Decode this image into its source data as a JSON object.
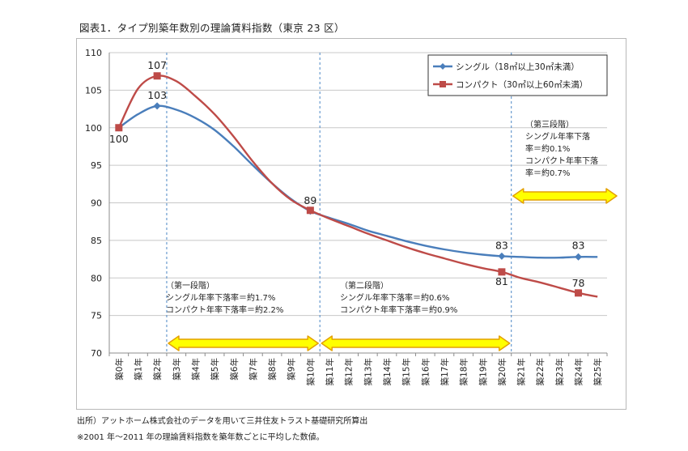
{
  "figure_title": "図表1．タイプ別築年数別の理論賃料指数（東京 23 区）",
  "notes": [
    "出所）アットホーム株式会社のデータを用いて三井住友トラスト基礎研究所算出",
    "※2001 年～2011 年の理論賃料指数を築年数ごとに平均した数値。"
  ],
  "colors": {
    "single": "#4a7ebb",
    "compact": "#be4b48",
    "band_fill": "#ffff00",
    "band_stroke": "#e4a000",
    "divider": "#4a86c5",
    "grid": "#c8c8c8"
  },
  "chart_data": {
    "type": "line",
    "title": "",
    "xlabel": "",
    "ylabel": "",
    "ylim": [
      70,
      110
    ],
    "yticks": [
      70,
      75,
      80,
      85,
      90,
      95,
      100,
      105,
      110
    ],
    "grid": true,
    "legend_position": "top-right",
    "categories": [
      "築0年",
      "築1年",
      "築2年",
      "築3年",
      "築4年",
      "築5年",
      "築6年",
      "築7年",
      "築8年",
      "築9年",
      "築10年",
      "築11年",
      "築12年",
      "築13年",
      "築14年",
      "築15年",
      "築16年",
      "築17年",
      "築18年",
      "築19年",
      "築20年",
      "築21年",
      "築22年",
      "築23年",
      "築24年",
      "築25年"
    ],
    "series": [
      {
        "name": "シングル（18㎡以上30㎡未満）",
        "marker": "diamond",
        "marked_x": [
          0,
          2,
          10,
          20,
          24
        ],
        "values": [
          100,
          101.8,
          102.9,
          102.4,
          101.3,
          99.7,
          97.5,
          95.0,
          92.6,
          90.5,
          88.9,
          88.0,
          87.2,
          86.3,
          85.6,
          84.9,
          84.3,
          83.8,
          83.4,
          83.1,
          82.9,
          82.8,
          82.7,
          82.7,
          82.8,
          82.8
        ]
      },
      {
        "name": "コンパクト（30㎡以上60㎡未満）",
        "marker": "square",
        "marked_x": [
          0,
          2,
          10,
          20,
          24
        ],
        "values": [
          100,
          105.2,
          106.9,
          106.2,
          104.2,
          101.8,
          98.8,
          95.5,
          92.6,
          90.4,
          89.0,
          87.9,
          86.9,
          85.9,
          85.0,
          84.1,
          83.3,
          82.6,
          81.9,
          81.3,
          80.8,
          80.0,
          79.4,
          78.7,
          78.0,
          77.5
        ]
      }
    ],
    "data_labels": [
      {
        "x": 0,
        "y": 100,
        "text": "100",
        "position": "below"
      },
      {
        "x": 2,
        "y": 107,
        "text": "107",
        "position": "above"
      },
      {
        "x": 2,
        "y": 103,
        "text": "103",
        "position": "above"
      },
      {
        "x": 10,
        "y": 89,
        "text": "89",
        "position": "above"
      },
      {
        "x": 20,
        "y": 83,
        "text": "83",
        "position": "above"
      },
      {
        "x": 20,
        "y": 81,
        "text": "81",
        "position": "below"
      },
      {
        "x": 24,
        "y": 83,
        "text": "83",
        "position": "above"
      },
      {
        "x": 24,
        "y": 78,
        "text": "78",
        "position": "above"
      }
    ],
    "phase_dividers_x": [
      2.5,
      10.5,
      20.5
    ],
    "phases": [
      {
        "from": 2.5,
        "to": 10.5,
        "lines": [
          "（第一段階）",
          "シングル年率下落率＝約1.7%",
          "コンパクト年率下落率＝約2.2%"
        ]
      },
      {
        "from": 10.5,
        "to": 20.5,
        "lines": [
          "（第二段階）",
          "シングル年率下落率＝約0.6%",
          "コンパクト年率下落率＝約0.9%"
        ]
      },
      {
        "from": 20.5,
        "to": 25.5,
        "lines": [
          "（第三段階）",
          "シングル年率下落",
          "率＝約0.1%",
          "コンパクト年率下落",
          "率＝約0.7%"
        ]
      }
    ]
  }
}
